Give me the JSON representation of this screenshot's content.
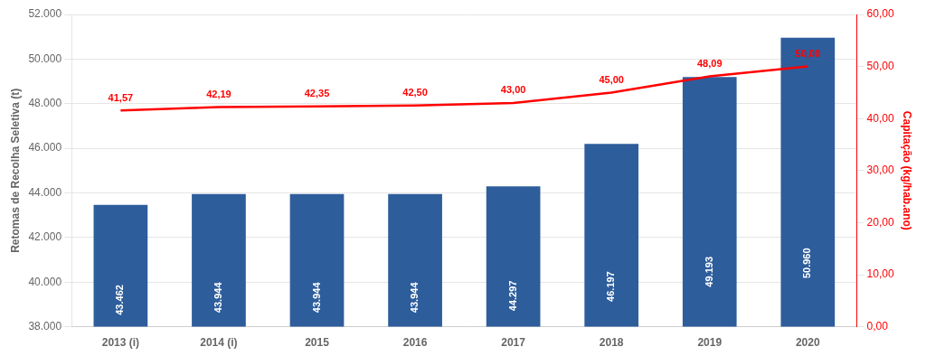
{
  "chart_data": {
    "type": "bar",
    "categories": [
      "2013 (i)",
      "2014 (i)",
      "2015",
      "2016",
      "2017",
      "2018",
      "2019",
      "2020"
    ],
    "series": [
      {
        "type": "bar",
        "color": "#2E5D9B",
        "values": [
          43462,
          43944,
          43944,
          43944,
          44297,
          46197,
          49193,
          50960
        ],
        "value_labels": [
          "43.462",
          "43.944",
          "43.944",
          "43.944",
          "44.297",
          "46.197",
          "49.193",
          "50.960"
        ]
      },
      {
        "type": "line",
        "axis": "y2",
        "color": "#FF0000",
        "values": [
          41.57,
          42.19,
          42.35,
          42.5,
          43.0,
          45.0,
          48.09,
          50.0
        ],
        "value_labels": [
          "41,57",
          "42,19",
          "42,35",
          "42,50",
          "43,00",
          "45,00",
          "48,09",
          "50,00"
        ]
      }
    ],
    "ylabel": "Retomas de Recolha Seletiva (t)",
    "y2label": "Capitação (kg/hab.ano)",
    "ylim": [
      38000,
      52000
    ],
    "yticks": [
      {
        "value": 38000,
        "label": "38.000"
      },
      {
        "value": 40000,
        "label": "40.000"
      },
      {
        "value": 42000,
        "label": "42.000"
      },
      {
        "value": 44000,
        "label": "44.000"
      },
      {
        "value": 46000,
        "label": "46.000"
      },
      {
        "value": 48000,
        "label": "48.000"
      },
      {
        "value": 50000,
        "label": "50.000"
      },
      {
        "value": 52000,
        "label": "52.000"
      }
    ],
    "y2lim": [
      0,
      60
    ],
    "y2ticks": [
      {
        "value": 0,
        "label": "0,00"
      },
      {
        "value": 10,
        "label": "10,00"
      },
      {
        "value": 20,
        "label": "20,00"
      },
      {
        "value": 30,
        "label": "30,00"
      },
      {
        "value": 40,
        "label": "40,00"
      },
      {
        "value": 50,
        "label": "50,00"
      },
      {
        "value": 60,
        "label": "60,00"
      }
    ],
    "grid": true,
    "data_labels": true
  }
}
